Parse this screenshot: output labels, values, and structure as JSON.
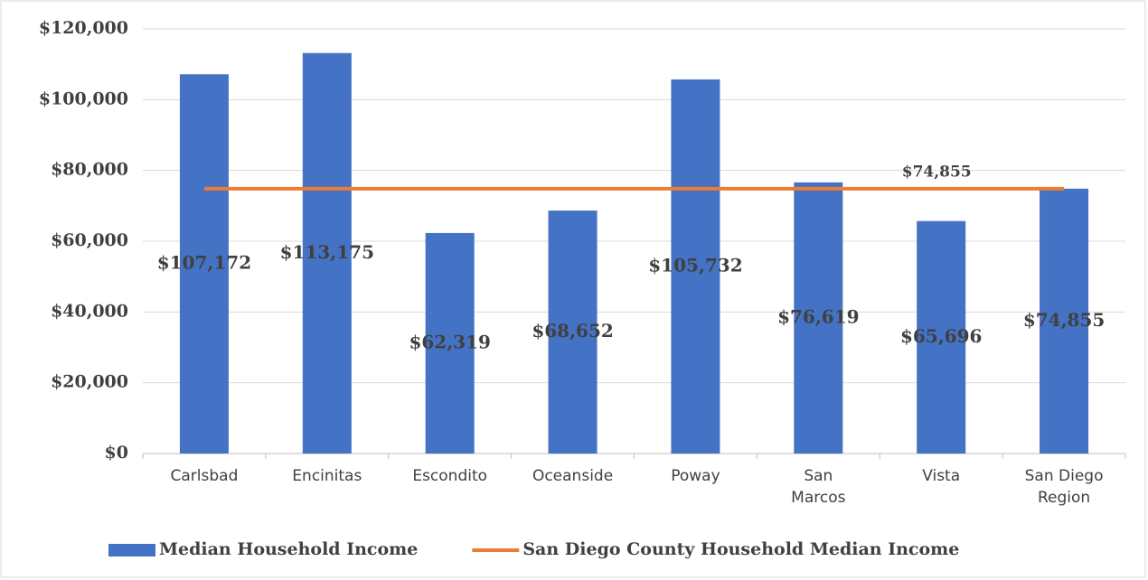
{
  "chart_data": {
    "type": "bar",
    "categories": [
      "Carlsbad",
      "Encinitas",
      "Escondito",
      "Oceanside",
      "Poway",
      "San Marcos",
      "Vista",
      "San Diego Region"
    ],
    "series": [
      {
        "name": "Median Household Income",
        "type": "bar",
        "color": "#4472c4",
        "values": [
          107172,
          113175,
          62319,
          68652,
          105732,
          76619,
          65696,
          74855
        ],
        "value_labels": [
          "$107,172",
          "$113,175",
          "$62,319",
          "$68,652",
          "$105,732",
          "$76,619",
          "$65,696",
          "$74,855"
        ]
      },
      {
        "name": "San Diego County Household Median Income",
        "type": "line",
        "color": "#ed7d31",
        "values": [
          74855,
          74855,
          74855,
          74855,
          74855,
          74855,
          74855,
          74855
        ],
        "value_labels": [
          null,
          null,
          null,
          null,
          null,
          null,
          "$74,855",
          null
        ]
      }
    ],
    "ylim": [
      0,
      120000
    ],
    "yticks": [
      {
        "value": 0,
        "label": "$0"
      },
      {
        "value": 20000,
        "label": "$20,000"
      },
      {
        "value": 40000,
        "label": "$40,000"
      },
      {
        "value": 60000,
        "label": "$60,000"
      },
      {
        "value": 80000,
        "label": "$80,000"
      },
      {
        "value": 100000,
        "label": "$100,000"
      },
      {
        "value": 120000,
        "label": "$120,000"
      }
    ],
    "grid": true,
    "legend": "bottom"
  }
}
